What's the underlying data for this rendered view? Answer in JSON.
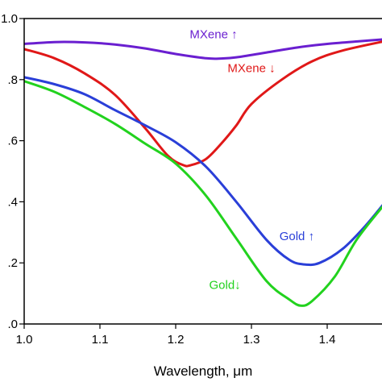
{
  "chart_data": {
    "type": "line",
    "xlabel": "Wavelength, μm",
    "ylabel": "",
    "xlim": [
      1.0,
      1.48
    ],
    "ylim": [
      0.0,
      1.0
    ],
    "xticks": [
      1.0,
      1.1,
      1.2,
      1.3,
      1.4
    ],
    "xtick_labels": [
      "1.0",
      "1.1",
      "1.2",
      "1.3",
      "1.4"
    ],
    "yticks": [
      0.0,
      0.2,
      0.4,
      0.6,
      0.8,
      1.0
    ],
    "ytick_labels": [
      ".0",
      ".2",
      ".4",
      ".6",
      ".8",
      "1.0"
    ],
    "grid": false,
    "series": [
      {
        "name": "MXene ↑",
        "color": "#6a1fd0",
        "x": [
          1.0,
          1.04,
          1.08,
          1.12,
          1.16,
          1.2,
          1.24,
          1.26,
          1.28,
          1.32,
          1.36,
          1.4,
          1.44,
          1.48
        ],
        "y": [
          0.917,
          0.923,
          0.922,
          0.915,
          0.902,
          0.884,
          0.87,
          0.869,
          0.873,
          0.889,
          0.905,
          0.917,
          0.925,
          0.933
        ]
      },
      {
        "name": "MXene ↓",
        "color": "#e01818",
        "x": [
          1.0,
          1.04,
          1.08,
          1.12,
          1.16,
          1.19,
          1.21,
          1.22,
          1.24,
          1.26,
          1.28,
          1.3,
          1.34,
          1.38,
          1.42,
          1.48
        ],
        "y": [
          0.9,
          0.87,
          0.82,
          0.75,
          0.64,
          0.55,
          0.52,
          0.52,
          0.54,
          0.59,
          0.65,
          0.72,
          0.8,
          0.86,
          0.895,
          0.928
        ]
      },
      {
        "name": "Gold ↑",
        "color": "#2a3fd8",
        "x": [
          1.0,
          1.04,
          1.08,
          1.12,
          1.16,
          1.2,
          1.24,
          1.28,
          1.32,
          1.35,
          1.37,
          1.39,
          1.42,
          1.45,
          1.48
        ],
        "y": [
          0.808,
          0.785,
          0.752,
          0.7,
          0.65,
          0.595,
          0.515,
          0.4,
          0.275,
          0.21,
          0.195,
          0.2,
          0.245,
          0.32,
          0.41
        ]
      },
      {
        "name": "Gold↓",
        "color": "#22d21e",
        "x": [
          1.0,
          1.04,
          1.08,
          1.12,
          1.16,
          1.2,
          1.24,
          1.28,
          1.32,
          1.35,
          1.365,
          1.38,
          1.41,
          1.44,
          1.48
        ],
        "y": [
          0.795,
          0.76,
          0.71,
          0.655,
          0.59,
          0.525,
          0.42,
          0.28,
          0.14,
          0.08,
          0.06,
          0.075,
          0.155,
          0.28,
          0.405
        ]
      }
    ],
    "annotations": [
      {
        "text": "MXene ↑",
        "series": 0,
        "x": 1.25,
        "y": 0.935
      },
      {
        "text": "MXene ↓",
        "series": 1,
        "x": 1.3,
        "y": 0.825
      },
      {
        "text": "Gold ↑",
        "series": 2,
        "x": 1.36,
        "y": 0.275
      },
      {
        "text": "Gold↓",
        "series": 3,
        "x": 1.265,
        "y": 0.115
      }
    ]
  }
}
